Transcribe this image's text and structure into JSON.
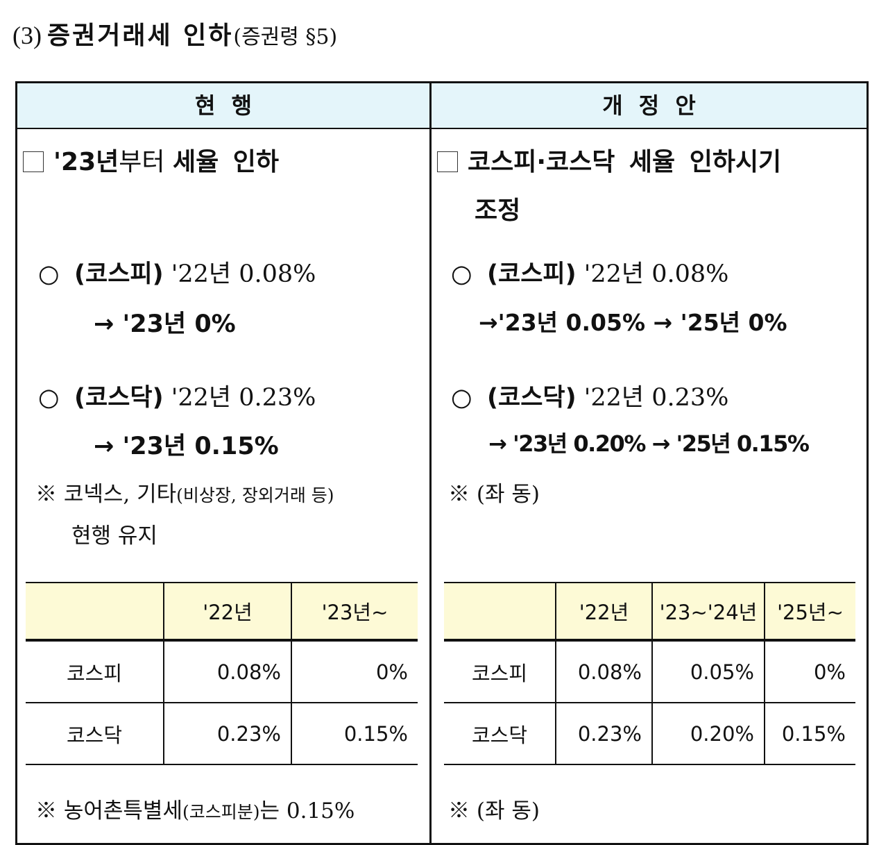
{
  "heading": {
    "number": "(3)",
    "title": "증권거래세 인하",
    "reference": "(증권령 §5)"
  },
  "header": {
    "current": "현 행",
    "proposal": "개 정 안"
  },
  "current": {
    "box_title_year": "'23년",
    "box_title_mid": "부터",
    "box_title_end": "세율 인하",
    "kospi": {
      "bullet": "○",
      "label": "(코스피)",
      "line1": "'22년 0.08%",
      "line2": "→ '23년 0%"
    },
    "kosdaq": {
      "bullet": "○",
      "label": "(코스닥)",
      "line1": "'22년 0.23%",
      "line2": "→ '23년 0.15%"
    },
    "note_main": "※ 코넥스, 기타",
    "note_small": "(비상장, 장외거래 등)",
    "note_line2": "현행 유지",
    "table": {
      "headers": [
        "",
        "'22년",
        "'23년~"
      ],
      "rows": [
        {
          "label": "코스피",
          "values": [
            "0.08%",
            "0%"
          ]
        },
        {
          "label": "코스닥",
          "values": [
            "0.23%",
            "0.15%"
          ]
        }
      ]
    },
    "bottom_note_main": "※ 농어촌특별세",
    "bottom_note_small": "(코스피분)",
    "bottom_note_end": "는 0.15%"
  },
  "proposal": {
    "box_title_line1": "코스피·코스닥 세율 인하시기",
    "box_title_line2": "조정",
    "kospi": {
      "bullet": "○",
      "label": "(코스피)",
      "line1": "'22년 0.08%",
      "line2": "→'23년 0.05% → '25년 0%"
    },
    "kosdaq": {
      "bullet": "○",
      "label": "(코스닥)",
      "line1": "'22년 0.23%",
      "line2": "→ '23년 0.20% → '25년 0.15%"
    },
    "note": "※ (좌 동)",
    "table": {
      "headers": [
        "",
        "'22년",
        "'23~'24년",
        "'25년~"
      ],
      "rows": [
        {
          "label": "코스피",
          "values": [
            "0.08%",
            "0.05%",
            "0%"
          ]
        },
        {
          "label": "코스닥",
          "values": [
            "0.23%",
            "0.20%",
            "0.15%"
          ]
        }
      ]
    },
    "bottom_note": "※ (좌 동)"
  },
  "colors": {
    "header_bg": "#e4f5fa",
    "table_header_bg": "#fdfad6",
    "border": "#111111"
  }
}
